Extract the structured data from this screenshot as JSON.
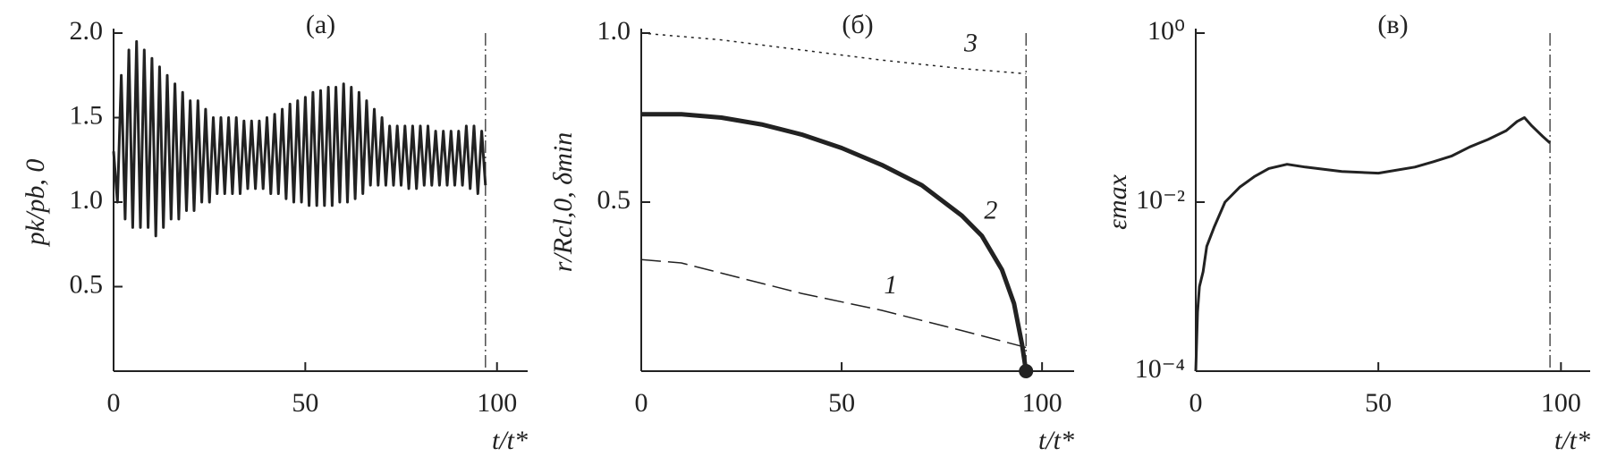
{
  "chart_data": [
    {
      "type": "line",
      "title": "(а)",
      "x_label": "t/t*",
      "y_label": "pk/pb, 0",
      "xlim": [
        0,
        108
      ],
      "xticks": [
        0,
        50,
        100
      ],
      "ylim": [
        0,
        2
      ],
      "yticks": [
        0.5,
        {
          "value": 1,
          "label": "1.0"
        },
        1.5,
        {
          "value": 2,
          "label": "2.0"
        }
      ],
      "vline": 97,
      "series": [
        {
          "color": "#222222",
          "dash": "solid",
          "width": 3,
          "x": [
            0,
            1,
            2,
            3,
            4,
            5,
            6,
            7,
            8,
            9,
            10,
            11,
            12,
            13,
            14,
            15,
            16,
            17,
            18,
            19,
            20,
            21,
            22,
            23,
            24,
            25,
            26,
            27,
            28,
            29,
            30,
            31,
            32,
            33,
            34,
            35,
            36,
            37,
            38,
            39,
            40,
            41,
            42,
            43,
            44,
            45,
            46,
            47,
            48,
            49,
            50,
            51,
            52,
            53,
            54,
            55,
            56,
            57,
            58,
            59,
            60,
            61,
            62,
            63,
            64,
            65,
            66,
            67,
            68,
            69,
            70,
            71,
            72,
            73,
            74,
            75,
            76,
            77,
            78,
            79,
            80,
            81,
            82,
            83,
            84,
            85,
            86,
            87,
            88,
            89,
            90,
            91,
            92,
            93,
            94,
            95,
            96,
            97
          ],
          "values": [
            1.3,
            1.0,
            1.75,
            0.9,
            1.9,
            0.85,
            1.95,
            0.85,
            1.9,
            0.85,
            1.85,
            0.8,
            1.8,
            0.85,
            1.75,
            0.9,
            1.7,
            0.9,
            1.65,
            0.95,
            1.6,
            0.95,
            1.6,
            1.0,
            1.55,
            1.0,
            1.5,
            1.05,
            1.5,
            1.05,
            1.5,
            1.05,
            1.5,
            1.05,
            1.48,
            1.08,
            1.48,
            1.08,
            1.48,
            1.08,
            1.5,
            1.05,
            1.52,
            1.05,
            1.55,
            1.02,
            1.58,
            1.0,
            1.6,
            1.0,
            1.62,
            0.98,
            1.65,
            0.98,
            1.66,
            0.98,
            1.68,
            0.98,
            1.68,
            1.0,
            1.7,
            1.0,
            1.68,
            1.02,
            1.65,
            1.05,
            1.6,
            1.1,
            1.55,
            1.1,
            1.5,
            1.1,
            1.45,
            1.1,
            1.45,
            1.1,
            1.45,
            1.08,
            1.45,
            1.08,
            1.45,
            1.1,
            1.45,
            1.1,
            1.42,
            1.1,
            1.42,
            1.1,
            1.42,
            1.1,
            1.42,
            1.1,
            1.45,
            1.08,
            1.45,
            1.05,
            1.42,
            1.1
          ]
        }
      ]
    },
    {
      "type": "line",
      "title": "(б)",
      "x_label": "t/t*",
      "y_label": "r/Rcl,0, δmin",
      "xlim": [
        0,
        108
      ],
      "xticks": [
        0,
        50,
        100
      ],
      "ylim": [
        0,
        1
      ],
      "yticks": [
        0.5,
        {
          "value": 1,
          "label": "1.0"
        }
      ],
      "vline": 96,
      "end_marker": true,
      "series": [
        {
          "name": "1",
          "color": "#222222",
          "dash": "dashed",
          "width": 1.5,
          "x": [
            0,
            10,
            20,
            40,
            60,
            80,
            96
          ],
          "values": [
            0.33,
            0.32,
            0.29,
            0.23,
            0.18,
            0.12,
            0.07
          ]
        },
        {
          "name": "2",
          "color": "#222222",
          "dash": "solid",
          "width": 5,
          "x": [
            0,
            10,
            20,
            30,
            40,
            50,
            60,
            70,
            80,
            85,
            90,
            93,
            95,
            96
          ],
          "values": [
            0.76,
            0.76,
            0.75,
            0.73,
            0.7,
            0.66,
            0.61,
            0.55,
            0.46,
            0.4,
            0.3,
            0.2,
            0.08,
            0
          ]
        },
        {
          "name": "3",
          "color": "#222222",
          "dash": "dotted",
          "width": 1.5,
          "x": [
            0,
            20,
            40,
            60,
            80,
            96
          ],
          "values": [
            1.0,
            0.98,
            0.95,
            0.92,
            0.895,
            0.88
          ]
        }
      ]
    },
    {
      "type": "line",
      "title": "(в)",
      "x_label": "t/t*",
      "y_label": "εmax",
      "xlim": [
        0,
        108
      ],
      "xticks": [
        0,
        50,
        100
      ],
      "ylim": [
        0.0001,
        1
      ],
      "log_y": true,
      "yticks": [
        {
          "value": 0.0001,
          "label": "10⁻⁴"
        },
        {
          "value": 0.01,
          "label": "10⁻²"
        },
        {
          "value": 1,
          "label": "10⁰"
        }
      ],
      "vline": 97,
      "series": [
        {
          "color": "#222222",
          "dash": "solid",
          "width": 3,
          "x": [
            0,
            0.5,
            1,
            2,
            3,
            5,
            8,
            12,
            16,
            20,
            25,
            30,
            40,
            50,
            60,
            65,
            70,
            75,
            80,
            85,
            88,
            90,
            92,
            95,
            97
          ],
          "values": [
            0.0001,
            0.0005,
            0.001,
            0.0015,
            0.003,
            0.005,
            0.01,
            0.015,
            0.02,
            0.025,
            0.028,
            0.026,
            0.023,
            0.022,
            0.026,
            0.03,
            0.035,
            0.045,
            0.055,
            0.07,
            0.09,
            0.1,
            0.08,
            0.06,
            0.05
          ]
        }
      ]
    }
  ]
}
